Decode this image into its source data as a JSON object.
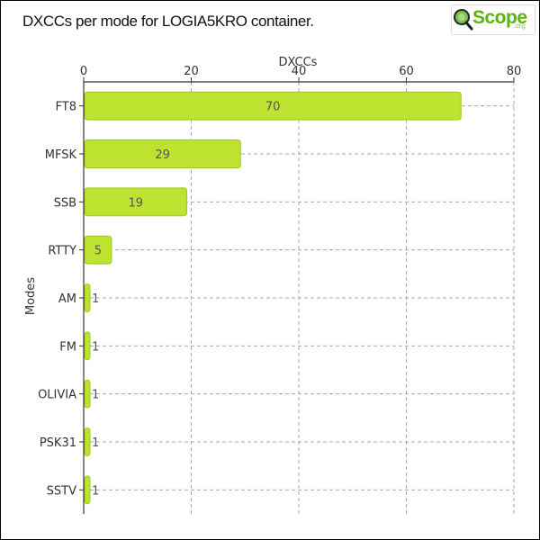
{
  "title": "DXCCs per mode for LOGIA5KRO container.",
  "logo": {
    "text": "Scope",
    "suffix": ".org",
    "icon": "magnifier-icon"
  },
  "colors": {
    "bar": "#bde22f",
    "bar_stroke": "#9ccc1a",
    "grid": "#aaaaaa",
    "axis": "#333333",
    "text": "#333333"
  },
  "chart_data": {
    "type": "bar",
    "orientation": "horizontal",
    "title": "DXCCs per mode for LOGIA5KRO container.",
    "xlabel": "DXCCs",
    "ylabel": "Modes",
    "xlim": [
      0,
      80
    ],
    "xticks": [
      0,
      20,
      40,
      60,
      80
    ],
    "categories": [
      "FT8",
      "MFSK",
      "SSB",
      "RTTY",
      "AM",
      "FM",
      "OLIVIA",
      "PSK31",
      "SSTV"
    ],
    "values": [
      70,
      29,
      19,
      5,
      1,
      1,
      1,
      1,
      1
    ],
    "grid": true,
    "x_axis_position": "top"
  }
}
